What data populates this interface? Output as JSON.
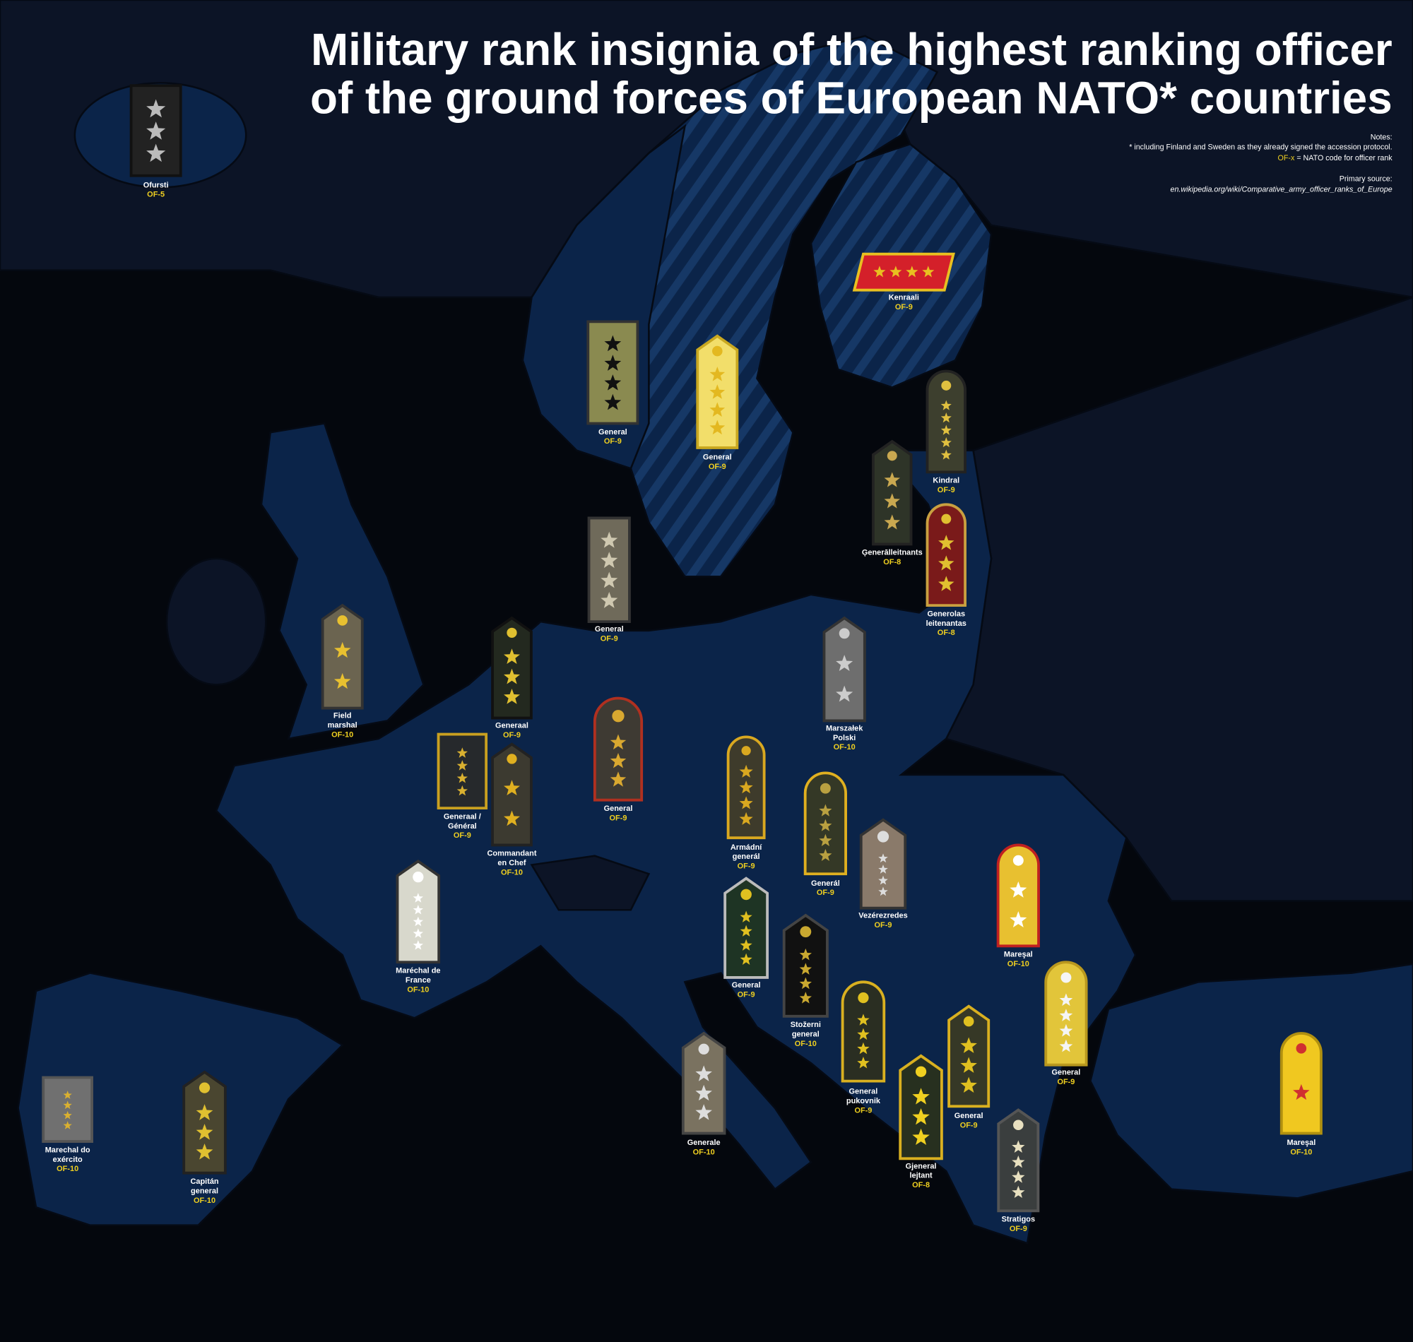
{
  "title": [
    "Military rank insignia of the highest ranking officer",
    "of the ground forces of European NATO* countries"
  ],
  "notes": {
    "heading": "Notes:",
    "footnote": "* including Finland and Sweden as they already signed the accession protocol.",
    "code_key": {
      "code": "OF-x",
      "text": "= NATO code for officer rank"
    }
  },
  "source": {
    "heading": "Primary source:",
    "url": "en.wikipedia.org/wiki/Comparative_army_officer_ranks_of_Europe"
  },
  "insignia": [
    {
      "rank": [
        "Ofursti"
      ],
      "code": "OF-5"
    },
    {
      "rank": [
        "Kenraali"
      ],
      "code": "OF-9"
    },
    {
      "rank": [
        "General"
      ],
      "code": "OF-9"
    },
    {
      "rank": [
        "General"
      ],
      "code": "OF-9"
    },
    {
      "rank": [
        "Kindral"
      ],
      "code": "OF-9"
    },
    {
      "rank": [
        "Ģenerālleitnants"
      ],
      "code": "OF-8"
    },
    {
      "rank": [
        "Generolas",
        "leitenantas"
      ],
      "code": "OF-8"
    },
    {
      "rank": [
        "General"
      ],
      "code": "OF-9"
    },
    {
      "rank": [
        "Field",
        "marshal"
      ],
      "code": "OF-10"
    },
    {
      "rank": [
        "Generaal"
      ],
      "code": "OF-9"
    },
    {
      "rank": [
        "Marszałek",
        "Polski"
      ],
      "code": "OF-10"
    },
    {
      "rank": [
        "General"
      ],
      "code": "OF-9"
    },
    {
      "rank": [
        "Generaal /",
        "Général"
      ],
      "code": "OF-9"
    },
    {
      "rank": [
        "Commandant",
        "en Chef"
      ],
      "code": "OF-10"
    },
    {
      "rank": [
        "Armádní",
        "generál"
      ],
      "code": "OF-9"
    },
    {
      "rank": [
        "Generál"
      ],
      "code": "OF-9"
    },
    {
      "rank": [
        "Vezérezredes"
      ],
      "code": "OF-9"
    },
    {
      "rank": [
        "Mareşal"
      ],
      "code": "OF-10"
    },
    {
      "rank": [
        "Maréchal de",
        "France"
      ],
      "code": "OF-10"
    },
    {
      "rank": [
        "General"
      ],
      "code": "OF-9"
    },
    {
      "rank": [
        "Stožerni",
        "general"
      ],
      "code": "OF-10"
    },
    {
      "rank": [
        "General",
        "pukovnik"
      ],
      "code": "OF-9"
    },
    {
      "rank": [
        "General"
      ],
      "code": "OF-9"
    },
    {
      "rank": [
        "General"
      ],
      "code": "OF-9"
    },
    {
      "rank": [
        "Gjeneral",
        "lejtant"
      ],
      "code": "OF-8"
    },
    {
      "rank": [
        "Generale"
      ],
      "code": "OF-10"
    },
    {
      "rank": [
        "Stratigos"
      ],
      "code": "OF-9"
    },
    {
      "rank": [
        "Mareşal"
      ],
      "code": "OF-10"
    },
    {
      "rank": [
        "Marechal do",
        "exército"
      ],
      "code": "OF-10"
    },
    {
      "rank": [
        "Capitán",
        "general"
      ],
      "code": "OF-10"
    }
  ]
}
